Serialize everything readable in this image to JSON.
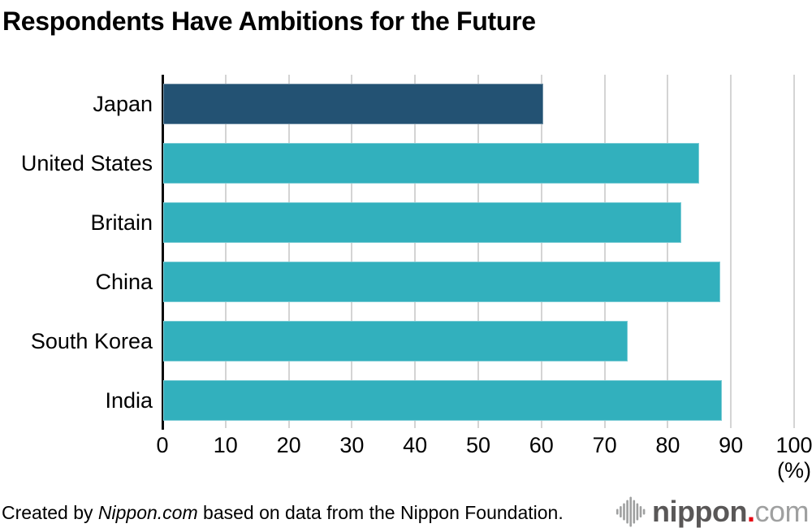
{
  "chart_data": {
    "type": "bar",
    "orientation": "horizontal",
    "title": "Respondents Have Ambitions for the Future",
    "categories": [
      "Japan",
      "United States",
      "Britain",
      "China",
      "South Korea",
      "India"
    ],
    "values": [
      60.1,
      84.8,
      82.0,
      88.2,
      73.5,
      88.4
    ],
    "unit": "%",
    "xlim": [
      0,
      100
    ],
    "x_ticks": [
      0,
      10,
      20,
      30,
      40,
      50,
      60,
      70,
      80,
      90,
      100
    ],
    "x_unit_label": "(%)",
    "grid": true,
    "legend": "none",
    "bar_colors": [
      "#235273",
      "#32b0bd",
      "#32b0bd",
      "#32b0bd",
      "#32b0bd",
      "#32b0bd"
    ],
    "highlight_category": "Japan"
  },
  "colors": {
    "highlight_bar": "#235273",
    "bar": "#32b0bd",
    "gridline": "#d4d4d4",
    "axis": "#0a0a0a",
    "logo_gray": "#9fa0a0",
    "logo_dark_gray": "#595757",
    "logo_red": "#e60012"
  },
  "footer": {
    "attribution_prefix": "Created by ",
    "attribution_source": "Nippon.com",
    "attribution_suffix": " based on data from the Nippon Foundation.",
    "logo": {
      "icon": "soundwave-bars-icon",
      "name": "nippon",
      "dot": ".",
      "tld": "com"
    }
  }
}
